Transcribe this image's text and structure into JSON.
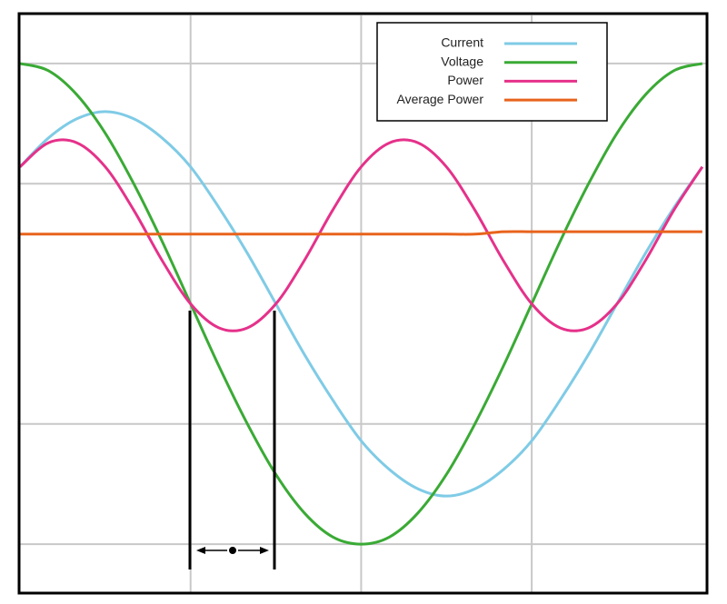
{
  "chart_data": {
    "type": "line",
    "x": [
      0,
      15,
      30,
      45,
      60,
      75,
      90,
      105,
      120,
      135,
      150,
      165,
      180,
      195,
      210,
      225,
      240,
      255,
      270,
      285,
      300,
      315,
      330,
      345,
      360
    ],
    "series": [
      {
        "name": "Current",
        "color": "#7fcbe6",
        "values": [
          0.57,
          0.69,
          0.77,
          0.8,
          0.77,
          0.69,
          0.57,
          0.4,
          0.21,
          0,
          -0.21,
          -0.4,
          -0.57,
          -0.69,
          -0.77,
          -0.8,
          -0.77,
          -0.69,
          -0.57,
          -0.4,
          -0.21,
          0,
          0.21,
          0.4,
          0.57
        ]
      },
      {
        "name": "Voltage",
        "color": "#3aaa35",
        "values": [
          1,
          0.97,
          0.87,
          0.71,
          0.5,
          0.26,
          0,
          -0.26,
          -0.5,
          -0.71,
          -0.87,
          -0.97,
          -1,
          -0.97,
          -0.87,
          -0.71,
          -0.5,
          -0.26,
          0,
          0.26,
          0.5,
          0.71,
          0.87,
          0.97,
          1
        ]
      },
      {
        "name": "Power",
        "color": "#e5318a",
        "values": [
          0.57,
          0.67,
          0.67,
          0.57,
          0.39,
          0.18,
          0,
          -0.1,
          -0.1,
          0,
          0.18,
          0.39,
          0.57,
          0.67,
          0.67,
          0.57,
          0.39,
          0.18,
          0,
          -0.1,
          -0.1,
          0,
          0.18,
          0.39,
          0.57
        ]
      },
      {
        "name": "Average Power",
        "color": "#e8631c",
        "values": [
          0.29,
          0.29,
          0.29,
          0.29,
          0.29,
          0.29,
          0.29,
          0.29,
          0.29,
          0.29,
          0.29,
          0.29,
          0.29,
          0.29,
          0.29,
          0.29,
          0.29,
          0.3,
          0.3,
          0.3,
          0.3,
          0.3,
          0.3,
          0.3,
          0.3
        ]
      }
    ],
    "xlim": [
      0,
      362
    ],
    "ylim": [
      -1.2,
      1.2
    ],
    "xticks": [
      90,
      180,
      270
    ],
    "yticks": [
      -1,
      -0.5,
      0.5,
      1
    ],
    "grid": true,
    "legend": "upper right"
  }
}
